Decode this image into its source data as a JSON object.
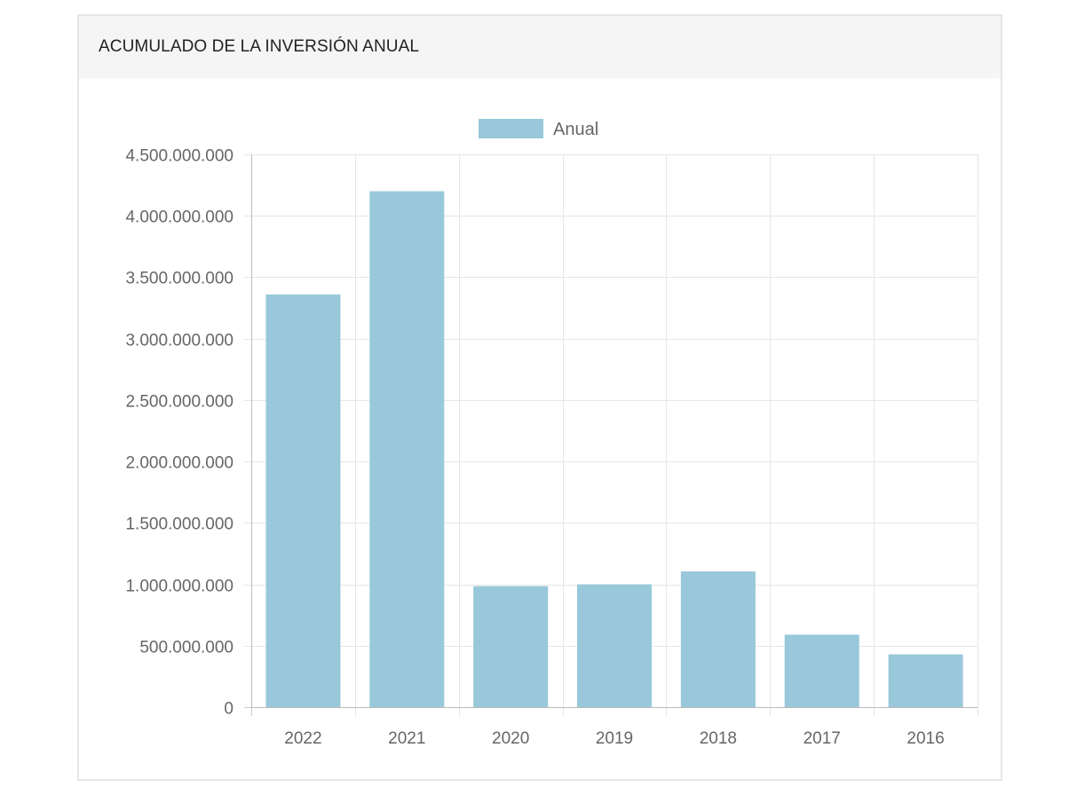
{
  "panel": {
    "title": "ACUMULADO DE LA INVERSIÓN ANUAL"
  },
  "chart_data": {
    "type": "bar",
    "categories": [
      "2022",
      "2021",
      "2020",
      "2019",
      "2018",
      "2017",
      "2016"
    ],
    "series": [
      {
        "name": "Anual",
        "color": "#98c8da",
        "values": [
          3360000000,
          4200000000,
          985000000,
          1000000000,
          1105000000,
          590000000,
          430000000
        ]
      }
    ],
    "y_ticks": [
      0,
      500000000,
      1000000000,
      1500000000,
      2000000000,
      2500000000,
      3000000000,
      3500000000,
      4000000000,
      4500000000
    ],
    "y_tick_labels": [
      "0",
      "500.000.000",
      "1.000.000.000",
      "1.500.000.000",
      "2.000.000.000",
      "2.500.000.000",
      "3.000.000.000",
      "3.500.000.000",
      "4.000.000.000",
      "4.500.000.000"
    ],
    "ylim": [
      0,
      4500000000
    ],
    "grid": true,
    "legend_position": "top-center"
  }
}
